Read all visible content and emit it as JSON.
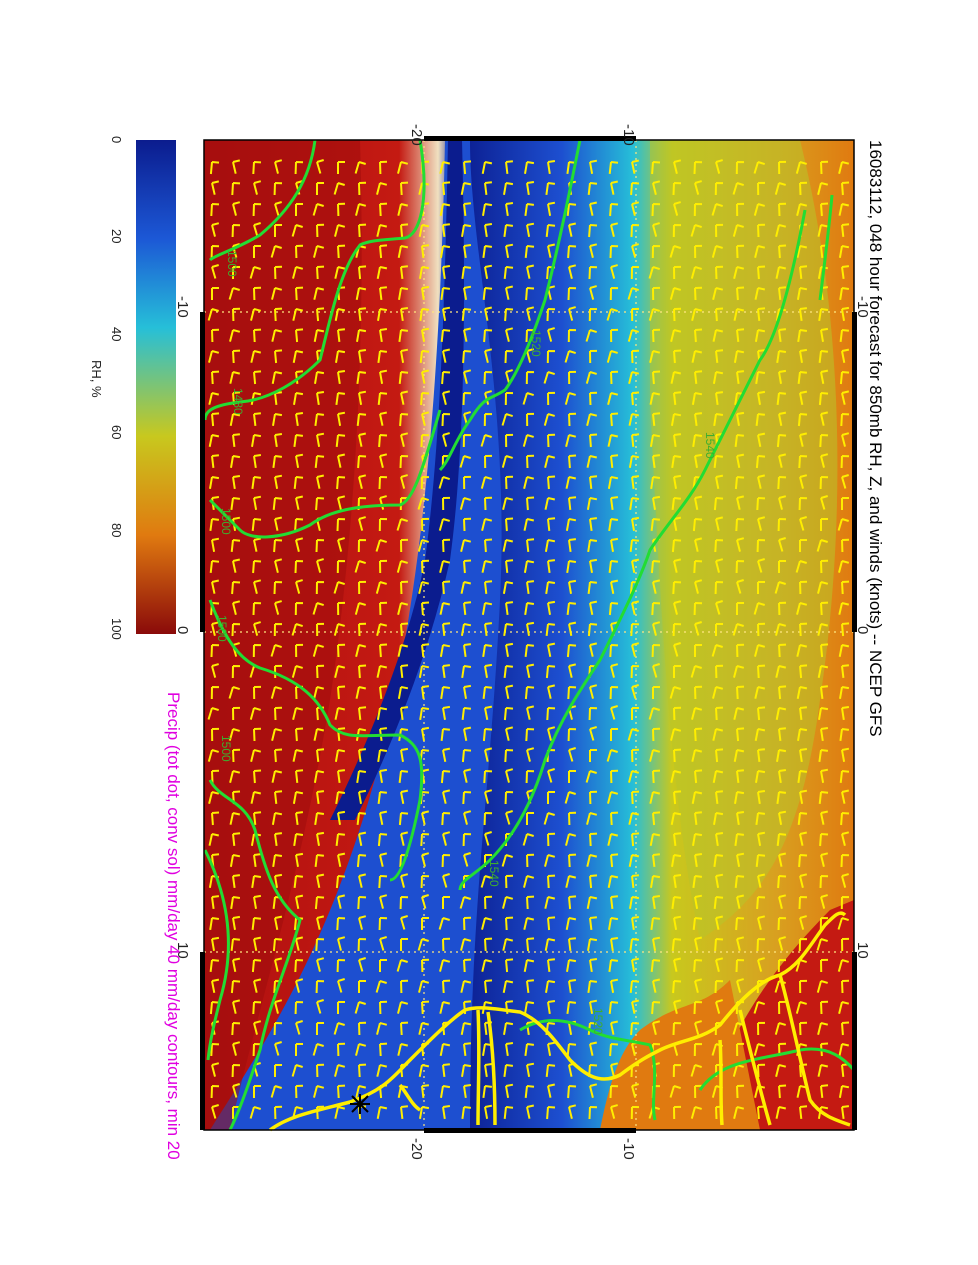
{
  "title": "16083112, 048 hour forecast for 850mb RH, Z, and winds (knots) -- NCEP GFS",
  "subtitle": "Precip (tot dot, conv sol) mm/day 40 mm/day contours, min 20",
  "colorbar": {
    "label": "RH, %",
    "ticks": [
      "0",
      "20",
      "40",
      "60",
      "80",
      "100"
    ],
    "colors": [
      "#0b1c8e",
      "#1c58d6",
      "#26bfd8",
      "#c8c81e",
      "#e07a10",
      "#8a0a0a"
    ]
  },
  "axes": {
    "top_ticks": [
      "-20",
      "-10"
    ],
    "bottom_ticks": [
      "-20",
      "-10"
    ],
    "left_ticks": [
      "-10",
      "0",
      "10"
    ],
    "right_ticks": [
      "-10",
      "0",
      "10"
    ]
  },
  "contour_labels": [
    "1500",
    "1480",
    "1520",
    "1500",
    "1500",
    "1500",
    "1540",
    "1540",
    "1520"
  ],
  "colors": {
    "contour": "#22dd33",
    "coast": "#ffee00",
    "barbs": "#ffee00",
    "precip_label": "#e000e0",
    "grid": "#ffe680"
  }
}
